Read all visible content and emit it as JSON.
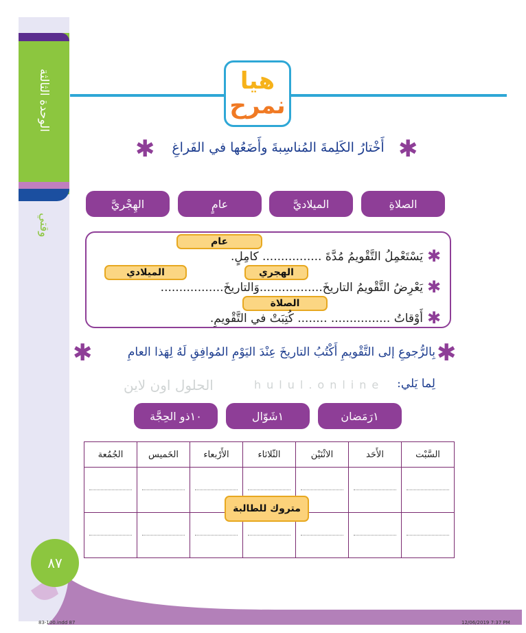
{
  "sidebar": {
    "unit": "الوحدة الثالثة",
    "topic": "وقتي"
  },
  "logo": {
    "line1": "هيا",
    "line2": "نمرح"
  },
  "exercise1": {
    "instruction": "أَخْتارُ الكَلِمةَ المُناسِبةَ وأَضَعُها في الفَراغِ",
    "words": [
      "الصلاةِ",
      "الميلاديَّ",
      "عامٍ",
      "الهِجْريَّ"
    ],
    "sentences": [
      "يَسْتَعْمِلُ التَّقْويمُ مُدَّةَ ................ كامِلٍ.",
      "يَعْرِضُ التَّقْويمُ التاريخَ.................وَالتاريخَ.................",
      "أَوْقاتُ ................ ........ كُتِبَتْ في التَّقْويمِ."
    ],
    "answers": {
      "a1": "عام",
      "a2": "الهجري",
      "a3": "الميلادي",
      "a4": "الصلاة"
    }
  },
  "exercise2": {
    "instruction": "بِالرُّجوعِ إلى التَّقْويمِ أَكْتُبُ التاريخَ عِنْدَ اليَوْمِ المُوافِقِ لَهُ لِهَذا العامِ",
    "instruction_cont": "لِما يَلي:",
    "dates": [
      "١رَمَضان",
      "١شَوّال",
      "١٠ذو الحِجَّة"
    ],
    "days": [
      "السَّبْت",
      "الأَحَد",
      "الاثْنَيْن",
      "الثّلاثاء",
      "الأَرْبعاء",
      "الخَميس",
      "الجُمُعة"
    ],
    "overlay": "متروك للطالبة"
  },
  "watermark": {
    "arabic": "الحلول اون لاين",
    "latin": "hulul.online"
  },
  "page_number": "٨٧",
  "footer": {
    "file": "83-100.indd   87",
    "date": "12/06/2019   7:37 PM"
  },
  "colors": {
    "purple": "#8e3e97",
    "green": "#8cc63f",
    "blue": "#2ea7d6",
    "answer": "#fac85a"
  }
}
